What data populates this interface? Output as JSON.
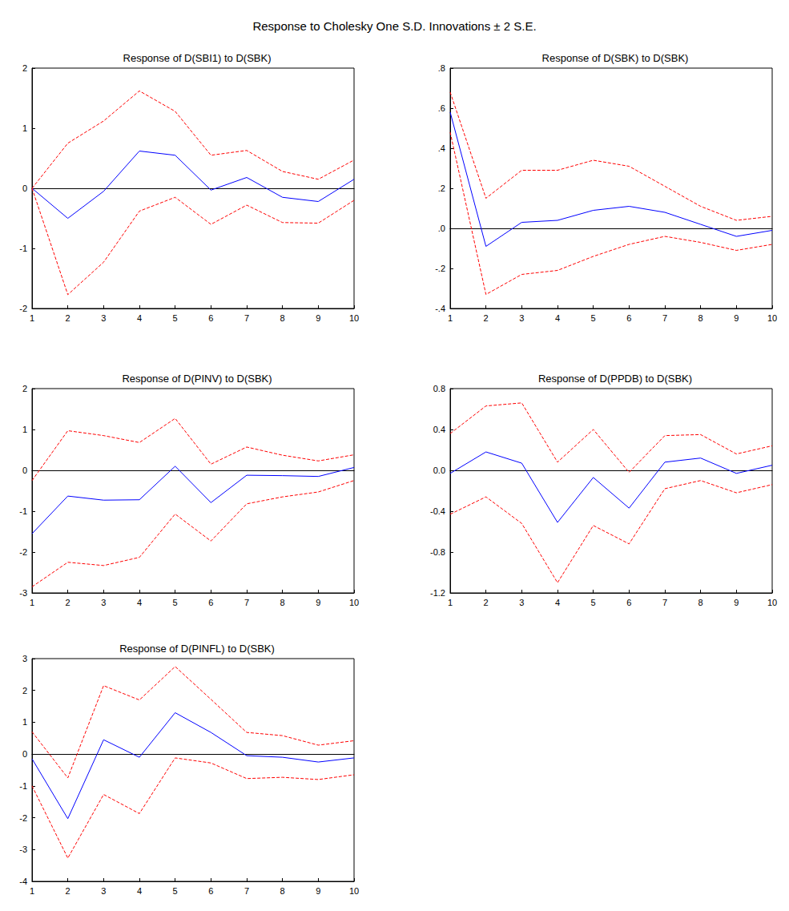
{
  "title": "Response to Cholesky One S.D. Innovations ± 2 S.E.",
  "chart_data": [
    {
      "type": "line",
      "title": "Response of D(SBI1) to D(SBK)",
      "grid": false,
      "x": [
        1,
        2,
        3,
        4,
        5,
        6,
        7,
        8,
        9,
        10
      ],
      "xlim": [
        1,
        10
      ],
      "xticks": [
        1,
        2,
        3,
        4,
        5,
        6,
        7,
        8,
        9,
        10
      ],
      "ylim": [
        -2,
        2
      ],
      "yticks": [
        -2,
        -1,
        0,
        1,
        2
      ],
      "series": [
        {
          "color": "#0000ff",
          "line_style": "solid",
          "values": [
            0,
            -0.5,
            -0.05,
            0.62,
            0.55,
            -0.03,
            0.18,
            -0.15,
            -0.22,
            0.15
          ]
        },
        {
          "color": "#ff0000",
          "line_style": "dashed",
          "values": [
            0,
            0.75,
            1.12,
            1.62,
            1.28,
            0.55,
            0.63,
            0.28,
            0.15,
            0.47
          ]
        },
        {
          "color": "#ff0000",
          "line_style": "dashed",
          "values": [
            0,
            -1.77,
            -1.23,
            -0.38,
            -0.15,
            -0.6,
            -0.28,
            -0.57,
            -0.58,
            -0.2
          ]
        }
      ]
    },
    {
      "type": "line",
      "title": "Response of D(SBK) to D(SBK)",
      "grid": false,
      "x": [
        1,
        2,
        3,
        4,
        5,
        6,
        7,
        8,
        9,
        10
      ],
      "xlim": [
        1,
        10
      ],
      "xticks": [
        1,
        2,
        3,
        4,
        5,
        6,
        7,
        8,
        9,
        10
      ],
      "ylim": [
        -0.4,
        0.8
      ],
      "yticks": [
        {
          "value": -0.4,
          "label": "-.4"
        },
        {
          "value": -0.2,
          "label": "-.2"
        },
        {
          "value": 0,
          "label": ".0"
        },
        {
          "value": 0.2,
          "label": ".2"
        },
        {
          "value": 0.4,
          "label": ".4"
        },
        {
          "value": 0.6,
          "label": ".6"
        },
        {
          "value": 0.8,
          "label": ".8"
        }
      ],
      "series": [
        {
          "color": "#0000ff",
          "line_style": "solid",
          "values": [
            0.58,
            -0.09,
            0.03,
            0.04,
            0.09,
            0.11,
            0.08,
            0.02,
            -0.04,
            -0.01
          ]
        },
        {
          "color": "#ff0000",
          "line_style": "dashed",
          "values": [
            0.68,
            0.15,
            0.29,
            0.29,
            0.34,
            0.31,
            0.21,
            0.11,
            0.04,
            0.06
          ]
        },
        {
          "color": "#ff0000",
          "line_style": "dashed",
          "values": [
            0.48,
            -0.33,
            -0.23,
            -0.21,
            -0.14,
            -0.08,
            -0.04,
            -0.07,
            -0.11,
            -0.08
          ]
        }
      ]
    },
    {
      "type": "line",
      "title": "Response of D(PINV) to D(SBK)",
      "grid": false,
      "x": [
        1,
        2,
        3,
        4,
        5,
        6,
        7,
        8,
        9,
        10
      ],
      "xlim": [
        1,
        10
      ],
      "xticks": [
        1,
        2,
        3,
        4,
        5,
        6,
        7,
        8,
        9,
        10
      ],
      "ylim": [
        -3,
        2
      ],
      "yticks": [
        -3,
        -2,
        -1,
        0,
        1,
        2
      ],
      "series": [
        {
          "color": "#0000ff",
          "line_style": "solid",
          "values": [
            -1.55,
            -0.63,
            -0.73,
            -0.72,
            0.1,
            -0.79,
            -0.12,
            -0.13,
            -0.15,
            0.07
          ]
        },
        {
          "color": "#ff0000",
          "line_style": "dashed",
          "values": [
            -0.25,
            0.97,
            0.85,
            0.68,
            1.27,
            0.15,
            0.57,
            0.37,
            0.23,
            0.38
          ]
        },
        {
          "color": "#ff0000",
          "line_style": "dashed",
          "values": [
            -2.85,
            -2.25,
            -2.33,
            -2.13,
            -1.07,
            -1.73,
            -0.82,
            -0.65,
            -0.53,
            -0.25
          ]
        }
      ]
    },
    {
      "type": "line",
      "title": "Response of D(PPDB) to D(SBK)",
      "grid": false,
      "x": [
        1,
        2,
        3,
        4,
        5,
        6,
        7,
        8,
        9,
        10
      ],
      "xlim": [
        1,
        10
      ],
      "xticks": [
        1,
        2,
        3,
        4,
        5,
        6,
        7,
        8,
        9,
        10
      ],
      "ylim": [
        -1.2,
        0.8
      ],
      "yticks": [
        -1.2,
        -0.8,
        -0.4,
        {
          "value": 0,
          "label": "0.0"
        },
        0.4,
        0.8
      ],
      "series": [
        {
          "color": "#0000ff",
          "line_style": "solid",
          "values": [
            -0.03,
            0.18,
            0.07,
            -0.51,
            -0.07,
            -0.37,
            0.08,
            0.12,
            -0.03,
            0.05
          ]
        },
        {
          "color": "#ff0000",
          "line_style": "dashed",
          "values": [
            0.36,
            0.63,
            0.66,
            0.08,
            0.4,
            -0.02,
            0.34,
            0.35,
            0.16,
            0.24
          ]
        },
        {
          "color": "#ff0000",
          "line_style": "dashed",
          "values": [
            -0.43,
            -0.26,
            -0.52,
            -1.1,
            -0.54,
            -0.72,
            -0.18,
            -0.1,
            -0.22,
            -0.14
          ]
        }
      ]
    },
    {
      "type": "line",
      "title": "Response of D(PINFL) to D(SBK)",
      "grid": false,
      "x": [
        1,
        2,
        3,
        4,
        5,
        6,
        7,
        8,
        9,
        10
      ],
      "xlim": [
        1,
        10
      ],
      "xticks": [
        1,
        2,
        3,
        4,
        5,
        6,
        7,
        8,
        9,
        10
      ],
      "ylim": [
        -4,
        3
      ],
      "yticks": [
        -4,
        -3,
        -2,
        -1,
        0,
        1,
        2,
        3
      ],
      "series": [
        {
          "color": "#0000ff",
          "line_style": "solid",
          "values": [
            -0.15,
            -2.03,
            0.45,
            -0.1,
            1.3,
            0.68,
            -0.05,
            -0.1,
            -0.25,
            -0.12
          ]
        },
        {
          "color": "#ff0000",
          "line_style": "dashed",
          "values": [
            0.7,
            -0.75,
            2.15,
            1.7,
            2.75,
            1.72,
            0.68,
            0.58,
            0.28,
            0.42
          ]
        },
        {
          "color": "#ff0000",
          "line_style": "dashed",
          "values": [
            -1.0,
            -3.27,
            -1.27,
            -1.87,
            -0.12,
            -0.28,
            -0.77,
            -0.73,
            -0.8,
            -0.65
          ]
        }
      ]
    }
  ]
}
